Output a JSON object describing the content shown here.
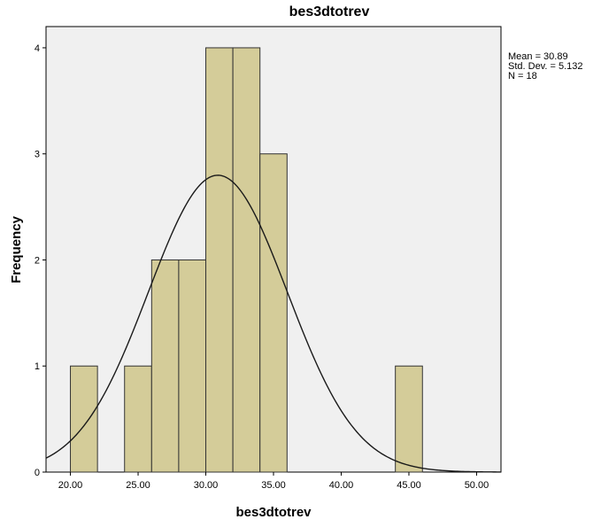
{
  "chart_data": {
    "type": "bar",
    "subtype": "histogram",
    "title": "bes3dtotrev",
    "xlabel": "bes3dtotrev",
    "ylabel": "Frequency",
    "xlim": [
      18.2,
      51.8
    ],
    "ylim": [
      0,
      4.2
    ],
    "bin_width": 2,
    "bins": [
      {
        "start": 20,
        "end": 22,
        "count": 1
      },
      {
        "start": 24,
        "end": 26,
        "count": 1
      },
      {
        "start": 26,
        "end": 28,
        "count": 2
      },
      {
        "start": 28,
        "end": 30,
        "count": 2
      },
      {
        "start": 30,
        "end": 32,
        "count": 4
      },
      {
        "start": 32,
        "end": 34,
        "count": 4
      },
      {
        "start": 34,
        "end": 36,
        "count": 3
      },
      {
        "start": 44,
        "end": 46,
        "count": 1
      }
    ],
    "x_ticks": [
      "20.00",
      "25.00",
      "30.00",
      "35.00",
      "40.00",
      "45.00",
      "50.00"
    ],
    "x_tick_values": [
      20,
      25,
      30,
      35,
      40,
      45,
      50
    ],
    "y_ticks": [
      0,
      1,
      2,
      3,
      4
    ],
    "normal_curve": {
      "mean": 30.89,
      "std_dev": 5.132,
      "n": 18
    },
    "stats_text": [
      "Mean = 30.89",
      "Std. Dev. = 5.132",
      "N = 18"
    ],
    "grid": false,
    "colors": {
      "bar_fill": "#d4cc99",
      "bar_stroke": "#333333",
      "plot_background": "#f0f0f0",
      "curve": "#1a1a1a"
    }
  }
}
